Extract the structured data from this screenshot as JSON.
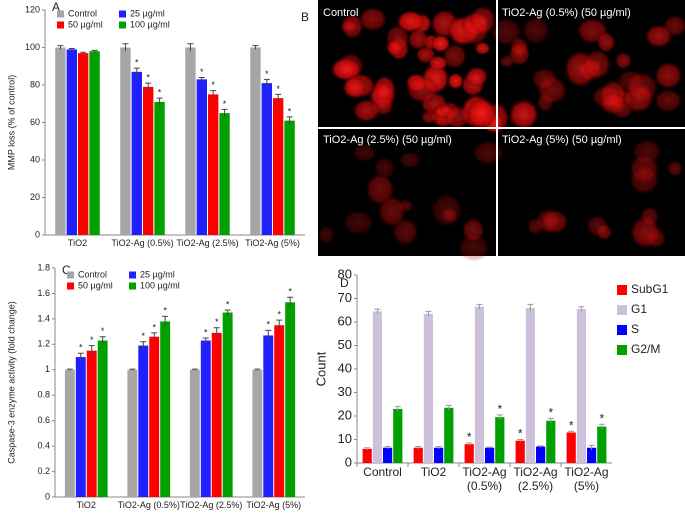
{
  "chart_data": [
    {
      "type": "bar",
      "label": "A",
      "y_label": "MMP loss (% of control)",
      "categories": [
        "TiO2",
        "TiO2-Ag (0.5%)",
        "TiO2-Ag (2.5%)",
        "TiO2-Ag (5%)"
      ],
      "ylim": [
        0,
        120
      ],
      "yticks": [
        0,
        20,
        40,
        60,
        80,
        100,
        120
      ],
      "legend": "top",
      "series": [
        {
          "name": "Control",
          "color": "#a6a6a6",
          "values": [
            100,
            100,
            100,
            100
          ],
          "errors": [
            1,
            2,
            2,
            1
          ],
          "annotations": [
            null,
            null,
            null,
            null
          ]
        },
        {
          "name": "25 µg/ml",
          "color": "#2020ff",
          "values": [
            99,
            87,
            83,
            81
          ],
          "errors": [
            0.5,
            2,
            1,
            2
          ],
          "annotations": [
            null,
            "*",
            "*",
            "*"
          ]
        },
        {
          "name": "50 µg/ml",
          "color": "#ff0000",
          "values": [
            97,
            79,
            75,
            73
          ],
          "errors": [
            0.5,
            2,
            2,
            2
          ],
          "annotations": [
            null,
            "*",
            "*",
            "*"
          ]
        },
        {
          "name": "100 µg/ml",
          "color": "#00a000",
          "values": [
            98,
            71,
            65,
            61
          ],
          "errors": [
            0.5,
            2,
            2,
            2
          ],
          "annotations": [
            null,
            "*",
            "*",
            "*"
          ]
        }
      ]
    },
    {
      "type": "bar",
      "label": "C",
      "y_label": "Caspase-3 enzyme activity (fold change)",
      "categories": [
        "TiO2",
        "TiO2-Ag (0.5%)",
        "TiO2-Ag (2.5%)",
        "TiO2-Ag (5%)"
      ],
      "ylim": [
        0,
        1.8
      ],
      "yticks": [
        0,
        0.2,
        0.4,
        0.6,
        0.8,
        1,
        1.2,
        1.4,
        1.6,
        1.8
      ],
      "legend": "top",
      "series": [
        {
          "name": "Control",
          "color": "#a6a6a6",
          "values": [
            1,
            1,
            1,
            1
          ],
          "errors": [
            0.005,
            0.005,
            0.005,
            0.005
          ],
          "annotations": [
            null,
            null,
            null,
            null
          ]
        },
        {
          "name": "25 µg/ml",
          "color": "#2020ff",
          "values": [
            1.1,
            1.19,
            1.23,
            1.27
          ],
          "errors": [
            0.03,
            0.03,
            0.02,
            0.04
          ],
          "annotations": [
            "*",
            "*",
            "*",
            "*"
          ]
        },
        {
          "name": "50 µg/ml",
          "color": "#ff0000",
          "values": [
            1.15,
            1.26,
            1.29,
            1.35
          ],
          "errors": [
            0.04,
            0.03,
            0.04,
            0.04
          ],
          "annotations": [
            "*",
            "*",
            "*",
            "*"
          ]
        },
        {
          "name": "100 µg/ml",
          "color": "#00a000",
          "values": [
            1.23,
            1.38,
            1.45,
            1.53
          ],
          "errors": [
            0.03,
            0.04,
            0.02,
            0.04
          ],
          "annotations": [
            "*",
            "*",
            "*",
            "*"
          ]
        }
      ]
    },
    {
      "type": "bar",
      "label": "D",
      "y_label": "Count",
      "categories": [
        "Control",
        "TiO2",
        "TiO2-Ag (0.5%)",
        "TiO2-Ag (2.5%)",
        "TiO2-Ag (5%)"
      ],
      "ylim": [
        0,
        80
      ],
      "yticks": [
        0,
        10,
        20,
        30,
        40,
        50,
        60,
        70,
        80
      ],
      "legend": "right",
      "series": [
        {
          "name": "SubG1",
          "color": "#ff0000",
          "values": [
            6,
            6.5,
            8,
            9.5,
            13
          ],
          "errors": [
            0.5,
            0.5,
            0.5,
            0.5,
            0.5
          ],
          "annotations": [
            null,
            null,
            "*",
            "*",
            "*"
          ]
        },
        {
          "name": "G1",
          "color": "#ccc0da",
          "values": [
            64.5,
            63.5,
            66.5,
            66,
            65.5
          ],
          "errors": [
            1,
            1,
            1,
            1.5,
            1
          ],
          "annotations": [
            null,
            null,
            null,
            null,
            null
          ]
        },
        {
          "name": "S",
          "color": "#0000ff",
          "values": [
            6.5,
            6.5,
            6.5,
            7,
            6.5
          ],
          "errors": [
            0.5,
            0.5,
            0.3,
            0.3,
            1
          ],
          "annotations": [
            null,
            null,
            null,
            null,
            null
          ]
        },
        {
          "name": "G2/M",
          "color": "#00a000",
          "values": [
            23,
            23.5,
            19.5,
            18,
            15.5
          ],
          "errors": [
            1,
            1,
            1,
            1,
            1
          ],
          "annotations": [
            null,
            null,
            "*",
            "*",
            "*"
          ]
        }
      ]
    }
  ],
  "micrograph": {
    "label": "B",
    "panels": [
      "Control",
      "TiO2-Ag (0.5%) (50 µg/ml)",
      "TiO2-Ag (2.5%) (50 µg/ml)",
      "TiO2-Ag (5%) (50 µg/ml)"
    ]
  }
}
